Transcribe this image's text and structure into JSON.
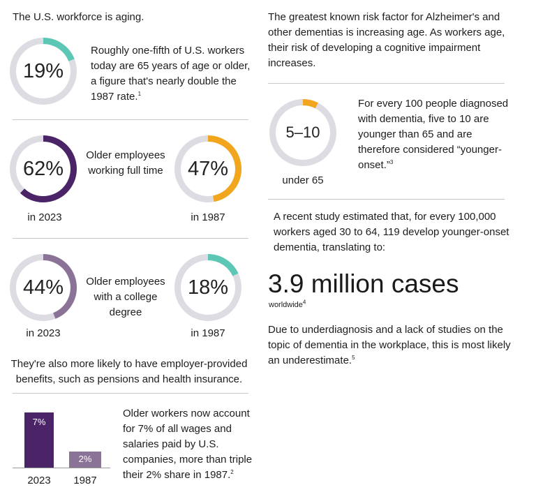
{
  "left": {
    "heading": "The U.S. workforce is aging.",
    "stat1": {
      "value_label": "19%",
      "value": 19,
      "color": "#5cc7b4",
      "text": "Roughly one-fifth of U.S. workers today are 65 years of age or older, a figure that's nearly double the 1987 rate.",
      "footnote": "1"
    },
    "fulltime": {
      "caption": "Older employees working full time",
      "a": {
        "value_label": "62%",
        "value": 62,
        "color": "#4a2466",
        "year": "in 2023"
      },
      "b": {
        "value_label": "47%",
        "value": 47,
        "color": "#f2a61e",
        "year": "in 1987"
      }
    },
    "degree": {
      "caption": "Older employees with a college degree",
      "a": {
        "value_label": "44%",
        "value": 44,
        "color": "#8a7396",
        "year": "in 2023"
      },
      "b": {
        "value_label": "18%",
        "value": 18,
        "color": "#5cc7b4",
        "year": "in 1987"
      }
    },
    "benefits": "They're also more likely to have employer-provided benefits, such as pensions and health insurance.",
    "wages": {
      "bar_2023": {
        "label": "7%",
        "value": 7,
        "year": "2023",
        "color": "#4a2466"
      },
      "bar_1987": {
        "label": "2%",
        "value": 2,
        "year": "1987",
        "color": "#8a7396"
      },
      "text": "Older workers now account for 7% of all wages and salaries paid by U.S. companies, more than triple their 2% share in 1987.",
      "footnote": "2"
    }
  },
  "right": {
    "intro": "The greatest known risk factor for Alzheimer's and other dementias is increasing age. As workers age, their risk of developing a cognitive impairment increases.",
    "onset": {
      "value_label": "5–10",
      "value": 7.5,
      "color": "#f2a61e",
      "sub": "under 65",
      "text": "For every 100 people diagnosed with dementia, five to 10 are younger than 65 and are therefore considered “younger-onset.”",
      "footnote": "3"
    },
    "study": "A recent study estimated that, for every 100,000 workers aged 30 to 64, 119 develop younger-onset dementia, translating to:",
    "cases": "3.9 million cases",
    "worldwide": "worldwide",
    "footnote4": "4",
    "under": "Due to underdiagnosis and a lack of studies on the topic of dementia in the workplace, this is most likely an underestimate.",
    "footnote5": "5"
  }
}
